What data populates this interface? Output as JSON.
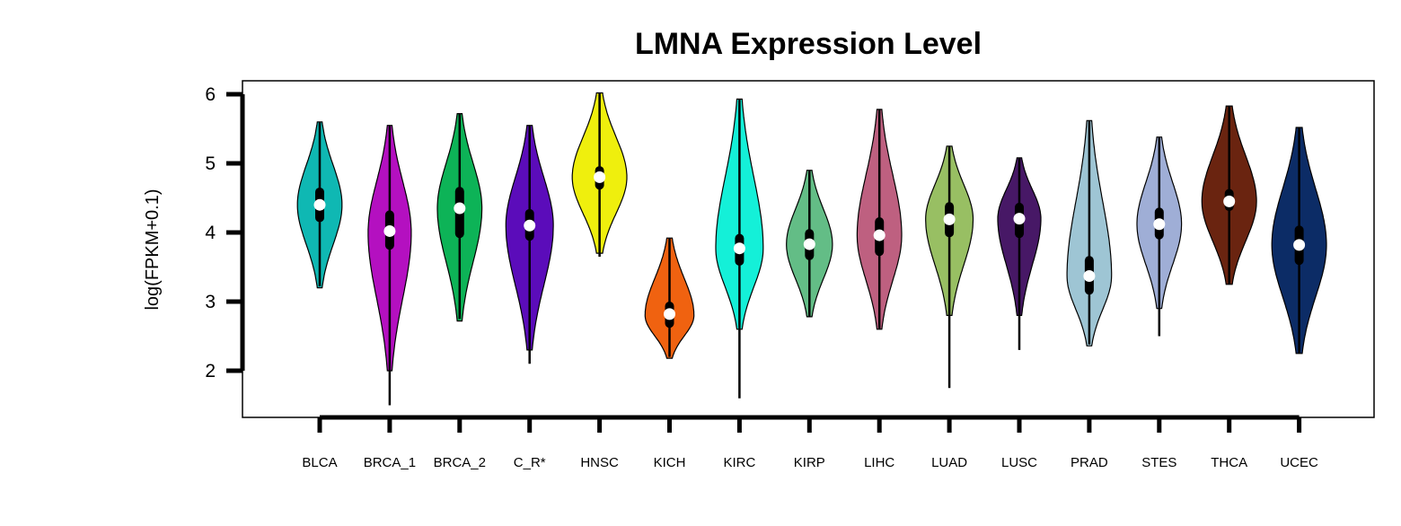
{
  "chart_data": {
    "type": "violin",
    "title": "LMNA Expression Level",
    "xlabel": "",
    "ylabel": "log(FPKM+0.1)",
    "ylim": [
      1.35,
      6.2
    ],
    "yticks": [
      2,
      3,
      4,
      5,
      6
    ],
    "categories": [
      "BLCA",
      "BRCA_1",
      "BRCA_2",
      "C_R*",
      "HNSC",
      "KICH",
      "KIRC",
      "KIRP",
      "LIHC",
      "LUAD",
      "LUSC",
      "PRAD",
      "STES",
      "THCA",
      "UCEC"
    ],
    "series": [
      {
        "category": "BLCA",
        "color": "#0fb8b3",
        "median": 4.4,
        "q1": 4.15,
        "q3": 4.65,
        "whisker_low": 3.22,
        "whisker_high": 5.6,
        "violin_min": 3.2,
        "violin_max": 5.6,
        "mode": 4.4,
        "width": 0.62
      },
      {
        "category": "BRCA_1",
        "color": "#b410c0",
        "median": 4.02,
        "q1": 3.75,
        "q3": 4.32,
        "whisker_low": 1.5,
        "whisker_high": 5.55,
        "violin_min": 2.0,
        "violin_max": 5.55,
        "mode": 4.0,
        "width": 0.6
      },
      {
        "category": "BRCA_2",
        "color": "#0db357",
        "median": 4.35,
        "q1": 3.92,
        "q3": 4.66,
        "whisker_low": 2.75,
        "whisker_high": 5.72,
        "violin_min": 2.72,
        "violin_max": 5.72,
        "mode": 4.35,
        "width": 0.62
      },
      {
        "category": "C_R*",
        "color": "#5b0cba",
        "median": 4.1,
        "q1": 3.88,
        "q3": 4.34,
        "whisker_low": 2.1,
        "whisker_high": 5.55,
        "violin_min": 2.3,
        "violin_max": 5.55,
        "mode": 4.1,
        "width": 0.66
      },
      {
        "category": "HNSC",
        "color": "#efef0d",
        "median": 4.8,
        "q1": 4.62,
        "q3": 4.96,
        "whisker_low": 3.65,
        "whisker_high": 6.02,
        "violin_min": 3.7,
        "violin_max": 6.02,
        "mode": 4.8,
        "width": 0.76
      },
      {
        "category": "KICH",
        "color": "#f06210",
        "median": 2.82,
        "q1": 2.62,
        "q3": 3.0,
        "whisker_low": 2.2,
        "whisker_high": 3.92,
        "violin_min": 2.18,
        "violin_max": 3.92,
        "mode": 2.8,
        "width": 0.68
      },
      {
        "category": "KIRC",
        "color": "#14f0d8",
        "median": 3.77,
        "q1": 3.52,
        "q3": 3.98,
        "whisker_low": 1.6,
        "whisker_high": 5.93,
        "violin_min": 2.6,
        "violin_max": 5.93,
        "mode": 3.77,
        "width": 0.66
      },
      {
        "category": "KIRP",
        "color": "#63bd86",
        "median": 3.83,
        "q1": 3.6,
        "q3": 4.05,
        "whisker_low": 2.78,
        "whisker_high": 4.9,
        "violin_min": 2.78,
        "violin_max": 4.9,
        "mode": 3.83,
        "width": 0.64
      },
      {
        "category": "LIHC",
        "color": "#be6080",
        "median": 3.96,
        "q1": 3.66,
        "q3": 4.22,
        "whisker_low": 2.6,
        "whisker_high": 5.78,
        "violin_min": 2.6,
        "violin_max": 5.78,
        "mode": 3.96,
        "width": 0.62
      },
      {
        "category": "LUAD",
        "color": "#98bf63",
        "median": 4.19,
        "q1": 3.93,
        "q3": 4.44,
        "whisker_low": 1.75,
        "whisker_high": 5.25,
        "violin_min": 2.8,
        "violin_max": 5.25,
        "mode": 4.19,
        "width": 0.66
      },
      {
        "category": "LUSC",
        "color": "#471866",
        "median": 4.2,
        "q1": 3.92,
        "q3": 4.43,
        "whisker_low": 2.3,
        "whisker_high": 5.08,
        "violin_min": 2.8,
        "violin_max": 5.08,
        "mode": 4.2,
        "width": 0.6
      },
      {
        "category": "PRAD",
        "color": "#9ec5d4",
        "median": 3.37,
        "q1": 3.1,
        "q3": 3.66,
        "whisker_low": 2.38,
        "whisker_high": 5.62,
        "violin_min": 2.36,
        "violin_max": 5.62,
        "mode": 3.37,
        "width": 0.62
      },
      {
        "category": "STES",
        "color": "#9faed6",
        "median": 4.12,
        "q1": 3.9,
        "q3": 4.36,
        "whisker_low": 2.5,
        "whisker_high": 5.38,
        "violin_min": 2.9,
        "violin_max": 5.38,
        "mode": 4.12,
        "width": 0.62
      },
      {
        "category": "THCA",
        "color": "#6a2410",
        "median": 4.45,
        "q1": 4.31,
        "q3": 4.63,
        "whisker_low": 3.25,
        "whisker_high": 5.83,
        "violin_min": 3.25,
        "violin_max": 5.83,
        "mode": 4.45,
        "width": 0.76
      },
      {
        "category": "UCEC",
        "color": "#0c2c66",
        "median": 3.82,
        "q1": 3.53,
        "q3": 4.1,
        "whisker_low": 2.25,
        "whisker_high": 5.52,
        "violin_min": 2.25,
        "violin_max": 5.52,
        "mode": 3.82,
        "width": 0.76
      }
    ]
  }
}
